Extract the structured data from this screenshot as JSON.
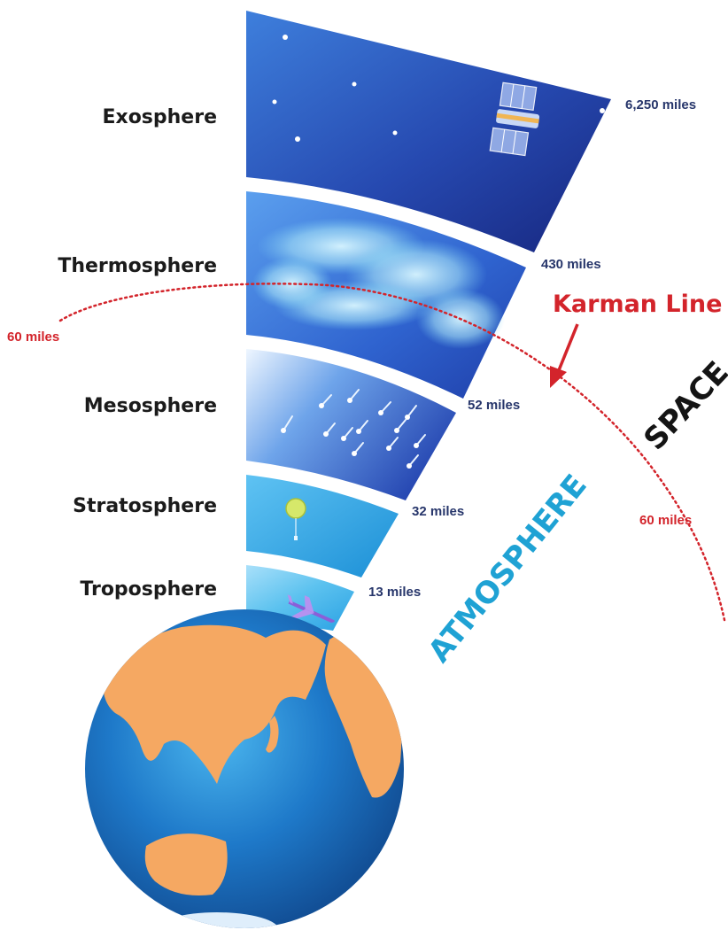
{
  "layers": [
    {
      "name": "Exosphere",
      "altitude": "6,250 miles"
    },
    {
      "name": "Thermosphere",
      "altitude": "430 miles"
    },
    {
      "name": "Mesosphere",
      "altitude": "52 miles"
    },
    {
      "name": "Stratosphere",
      "altitude": "32 miles"
    },
    {
      "name": "Troposphere",
      "altitude": "13 miles"
    }
  ],
  "karman": {
    "title": "Karman Line",
    "altitude_left": "60 miles",
    "altitude_right": "60 miles"
  },
  "regions": {
    "space": "SPACE",
    "atmosphere": "ATMOSPHERE"
  },
  "colors": {
    "exosphere": "#1a2f8c",
    "thermosphere": "#2b6fd8",
    "mesosphere": "#3a73d6",
    "stratosphere": "#2aa6e3",
    "troposphere": "#57c0ee",
    "karman_line": "#d3242b",
    "ocean": "#1e79c9",
    "land": "#f5a862"
  }
}
